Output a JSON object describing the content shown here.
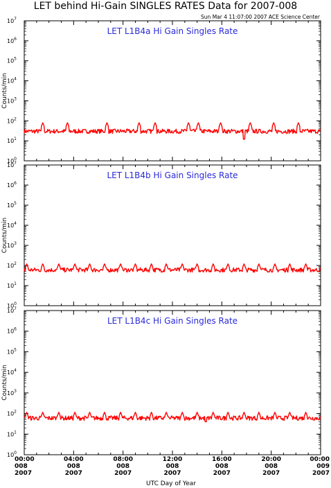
{
  "header": {
    "title": "LET behind Hi-Gain SINGLES RATES Data for 2007-008",
    "timestamp": "Sun Mar  4 11:07:00 2007 ACE Science Center"
  },
  "colors": {
    "series": "#ff0000",
    "panel_title": "#2a2ad8",
    "axes": "#000000"
  },
  "chart_data": [
    {
      "type": "line",
      "title": "LET L1B4a Hi Gain Singles Rate",
      "ylabel": "Counts/min",
      "yscale": "log",
      "ylim": [
        1,
        10000000
      ],
      "ytick_exponents": [
        "0",
        "1",
        "2",
        "3",
        "4",
        "5",
        "6",
        "7"
      ],
      "xlim_hours": [
        0,
        24
      ],
      "x_step_hours": 0.05,
      "baseline": 30,
      "spike_hours": [
        1.5,
        3.5,
        6.7,
        9.3,
        10.6,
        13.3,
        14.1,
        15.9,
        18.3,
        20.2,
        22.2
      ],
      "spike_value": 80,
      "dip_hours": [
        17.8
      ],
      "dip_value": 12
    },
    {
      "type": "line",
      "title": "LET L1B4b Hi Gain Singles Rate",
      "ylabel": "Counts/min",
      "yscale": "log",
      "ylim": [
        1,
        10000000
      ],
      "ytick_exponents": [
        "0",
        "1",
        "2",
        "3",
        "4",
        "5",
        "6",
        "7"
      ],
      "xlim_hours": [
        0,
        24
      ],
      "x_step_hours": 0.05,
      "baseline": 60,
      "spike_hours": [
        0.2,
        1.5,
        2.8,
        4.1,
        5.3,
        6.5,
        7.8,
        9.0,
        10.3,
        11.5,
        12.8,
        14.0,
        15.3,
        16.5,
        17.8,
        19.0,
        20.3,
        21.5,
        22.8
      ],
      "spike_value": 120,
      "dip_hours": [],
      "dip_value": 40
    },
    {
      "type": "line",
      "title": "LET L1B4c Hi Gain Singles Rate",
      "ylabel": "Counts/min",
      "yscale": "log",
      "ylim": [
        1,
        10000000
      ],
      "ytick_exponents": [
        "0",
        "1",
        "2",
        "3",
        "4",
        "5",
        "6",
        "7"
      ],
      "xlim_hours": [
        0,
        24
      ],
      "x_step_hours": 0.05,
      "baseline": 60,
      "spike_hours": [
        0.2,
        1.5,
        2.8,
        4.1,
        5.3,
        6.5,
        7.8,
        9.0,
        10.3,
        11.5,
        12.8,
        14.0,
        15.3,
        16.5,
        17.8,
        19.0,
        20.3,
        21.5,
        22.8
      ],
      "spike_value": 115,
      "dip_hours": [
        14.7
      ],
      "dip_value": 40
    }
  ],
  "x_axis": {
    "label": "UTC Day of Year",
    "ticks": [
      {
        "time": "00:00",
        "doy": "008",
        "year": "2007"
      },
      {
        "time": "04:00",
        "doy": "008",
        "year": "2007"
      },
      {
        "time": "08:00",
        "doy": "008",
        "year": "2007"
      },
      {
        "time": "12:00",
        "doy": "008",
        "year": "2007"
      },
      {
        "time": "16:00",
        "doy": "008",
        "year": "2007"
      },
      {
        "time": "20:00",
        "doy": "008",
        "year": "2007"
      },
      {
        "time": "00:00",
        "doy": "009",
        "year": "2007"
      }
    ]
  }
}
